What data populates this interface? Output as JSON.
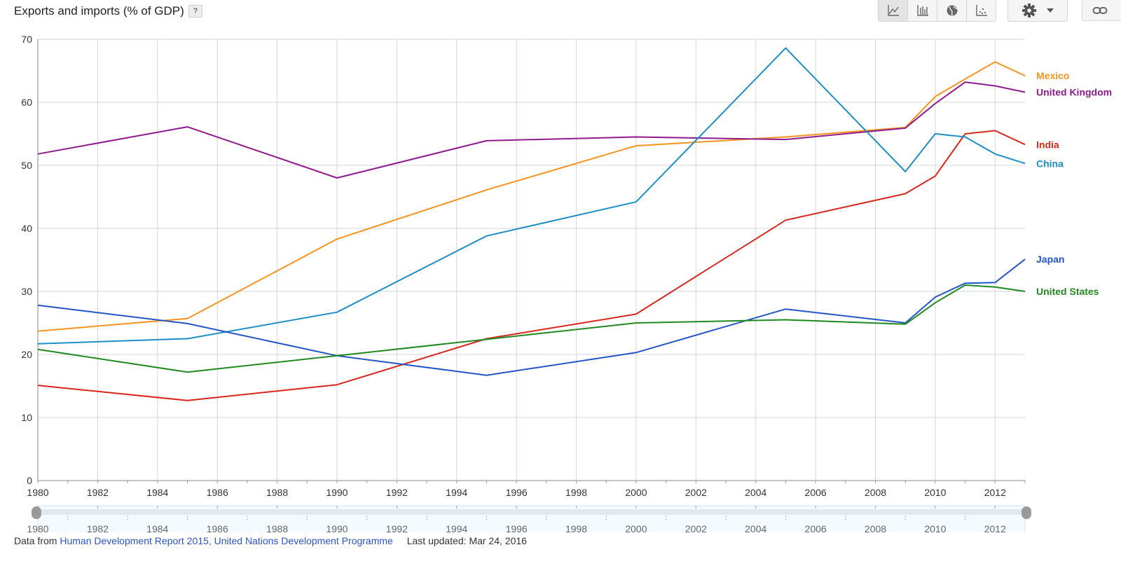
{
  "header": {
    "title": "Exports and imports (% of GDP)",
    "help_label": "?"
  },
  "toolbar": {
    "buttons": [
      {
        "icon": "line-chart-icon",
        "active": true
      },
      {
        "icon": "bar-chart-icon",
        "active": false
      },
      {
        "icon": "globe-icon",
        "active": false
      },
      {
        "icon": "scatter-chart-icon",
        "active": false
      }
    ],
    "settings_icon": "gear-icon",
    "dropdown_icon": "caret-down-icon",
    "link_icon": "link-icon"
  },
  "chart_data": {
    "type": "line",
    "title": "Exports and imports (% of GDP)",
    "xlabel": "",
    "ylabel": "",
    "xlim": [
      1980,
      2013
    ],
    "ylim": [
      0,
      70
    ],
    "xticks": [
      1980,
      1982,
      1984,
      1986,
      1988,
      1990,
      1992,
      1994,
      1996,
      1998,
      2000,
      2002,
      2004,
      2006,
      2008,
      2010,
      2012
    ],
    "yticks": [
      0,
      10,
      20,
      30,
      40,
      50,
      60,
      70
    ],
    "grid": true,
    "legend": "end-of-line labels",
    "x": [
      1980,
      1985,
      1990,
      1995,
      2000,
      2005,
      2009,
      2010,
      2011,
      2012,
      2013
    ],
    "series": [
      {
        "name": "Mexico",
        "color": "#f7931e",
        "values": [
          23.7,
          25.7,
          38.3,
          46.1,
          53.1,
          54.5,
          56.0,
          60.9,
          63.7,
          66.4,
          64.2
        ]
      },
      {
        "name": "United Kingdom",
        "color": "#8e1a8e",
        "values": [
          51.8,
          56.1,
          48.0,
          53.9,
          54.5,
          54.1,
          55.9,
          59.8,
          63.2,
          62.6,
          61.6
        ]
      },
      {
        "name": "India",
        "color": "#d9261c",
        "values": [
          15.1,
          12.7,
          15.2,
          22.5,
          26.4,
          41.3,
          45.5,
          48.3,
          55.0,
          55.5,
          53.3
        ]
      },
      {
        "name": "China",
        "color": "#1c8fc7",
        "values": [
          21.7,
          22.5,
          26.7,
          38.8,
          44.2,
          68.6,
          49.0,
          55.0,
          54.5,
          51.8,
          50.3
        ]
      },
      {
        "name": "Japan",
        "color": "#2256c6",
        "values": [
          27.8,
          24.9,
          19.8,
          16.7,
          20.3,
          27.2,
          25.0,
          29.1,
          31.3,
          31.4,
          35.1
        ]
      },
      {
        "name": "United States",
        "color": "#1f8a1f",
        "values": [
          20.8,
          17.2,
          19.8,
          22.4,
          25.0,
          25.5,
          24.8,
          28.2,
          31.0,
          30.7,
          30.0
        ]
      }
    ]
  },
  "range_selector": {
    "start_year": 1980,
    "end_year": 2013
  },
  "footer": {
    "data_from_label": "Data from",
    "source_link": "Human Development Report 2015, United Nations Development Programme",
    "last_updated": "Last updated: Mar 24, 2016"
  }
}
